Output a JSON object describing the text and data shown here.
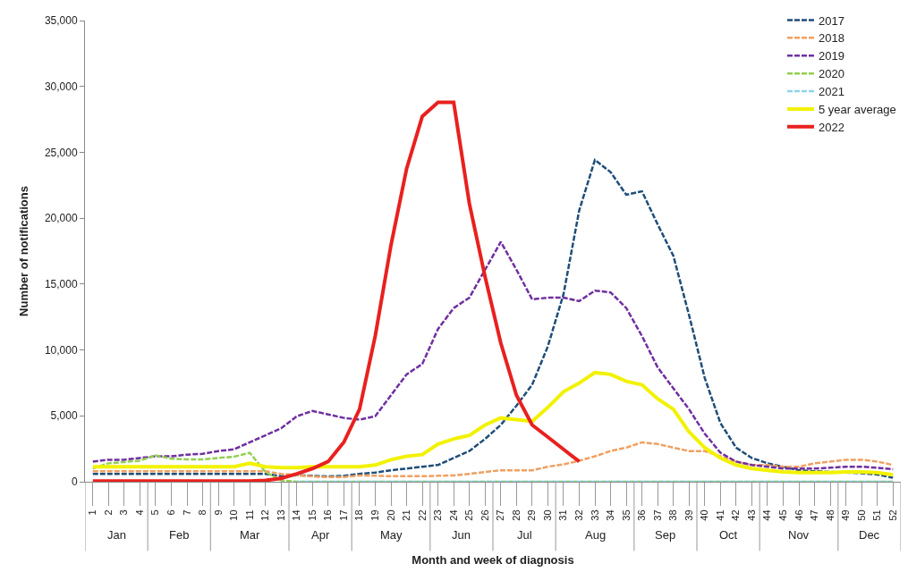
{
  "chart_data": {
    "type": "line",
    "xlabel": "Month and week of diagnosis",
    "ylabel": "Number of notifications",
    "categories": [
      "1",
      "2",
      "3",
      "4",
      "5",
      "6",
      "7",
      "8",
      "9",
      "10",
      "11",
      "12",
      "13",
      "14",
      "15",
      "16",
      "17",
      "18",
      "19",
      "20",
      "21",
      "22",
      "23",
      "24",
      "25",
      "26",
      "27",
      "28",
      "29",
      "30",
      "31",
      "32",
      "33",
      "34",
      "35",
      "36",
      "37",
      "38",
      "39",
      "40",
      "41",
      "42",
      "43",
      "44",
      "45",
      "46",
      "47",
      "48",
      "49",
      "50",
      "51",
      "52"
    ],
    "ylim": [
      0,
      35000
    ],
    "yticks": [
      {
        "value": 0,
        "label": "0"
      },
      {
        "value": 5000,
        "label": "5,000"
      },
      {
        "value": 10000,
        "label": "10,000"
      },
      {
        "value": 15000,
        "label": "15,000"
      },
      {
        "value": 20000,
        "label": "20,000"
      },
      {
        "value": 25000,
        "label": "25,000"
      },
      {
        "value": 30000,
        "label": "30,000"
      },
      {
        "value": 35000,
        "label": "35,000"
      }
    ],
    "legend": "top right",
    "series": [
      {
        "name": "2017",
        "color": "#1f4e79",
        "line_style": "dashed",
        "values": [
          600,
          600,
          600,
          600,
          600,
          600,
          600,
          600,
          600,
          600,
          600,
          600,
          420,
          500,
          450,
          400,
          450,
          600,
          700,
          870,
          1000,
          1140,
          1270,
          1800,
          2330,
          3250,
          4310,
          5770,
          7360,
          10270,
          14230,
          20590,
          24420,
          23500,
          21780,
          22040,
          19530,
          17150,
          12650,
          7880,
          4450,
          2590,
          1800,
          1400,
          1140,
          870,
          800,
          750,
          700,
          650,
          550,
          300
        ]
      },
      {
        "name": "2018",
        "color": "#f0a060",
        "line_style": "dashed",
        "values": [
          800,
          800,
          800,
          800,
          800,
          800,
          800,
          800,
          800,
          800,
          800,
          800,
          600,
          500,
          400,
          350,
          350,
          480,
          450,
          420,
          420,
          420,
          450,
          480,
          600,
          740,
          870,
          870,
          870,
          1140,
          1320,
          1590,
          1930,
          2330,
          2590,
          2990,
          2860,
          2590,
          2330,
          2330,
          1930,
          1530,
          1270,
          1270,
          1140,
          1140,
          1400,
          1530,
          1670,
          1670,
          1530,
          1270
        ]
      },
      {
        "name": "2019",
        "color": "#7030a0",
        "line_style": "dashed",
        "values": [
          1530,
          1670,
          1670,
          1800,
          1930,
          1930,
          2060,
          2120,
          2330,
          2460,
          2990,
          3520,
          4050,
          4970,
          5370,
          5110,
          4840,
          4710,
          4970,
          6560,
          8150,
          8940,
          11590,
          13180,
          13970,
          16090,
          18200,
          16090,
          13840,
          13970,
          13970,
          13710,
          14500,
          14370,
          13180,
          11060,
          8680,
          7090,
          5500,
          3650,
          2200,
          1530,
          1270,
          1140,
          1000,
          1000,
          1000,
          1060,
          1140,
          1140,
          1060,
          950
        ]
      },
      {
        "name": "2020",
        "color": "#92d050",
        "line_style": "dashed",
        "values": [
          1000,
          1400,
          1500,
          1600,
          2000,
          1750,
          1700,
          1700,
          1800,
          1900,
          2200,
          740,
          100,
          0,
          0,
          0,
          0,
          0,
          0,
          0,
          0,
          0,
          0,
          0,
          0,
          0,
          0,
          0,
          0,
          0,
          0,
          0,
          0,
          0,
          0,
          0,
          0,
          0,
          0,
          0,
          0,
          0,
          0,
          0,
          0,
          0,
          0,
          0,
          0,
          0,
          0,
          0
        ]
      },
      {
        "name": "2021",
        "color": "#8fd3e8",
        "line_style": "dashed",
        "values": [
          null,
          null,
          null,
          null,
          null,
          null,
          null,
          null,
          null,
          null,
          null,
          null,
          null,
          0,
          0,
          0,
          0,
          0,
          0,
          0,
          0,
          0,
          0,
          0,
          0,
          0,
          0,
          0,
          0,
          0,
          0,
          0,
          0,
          0,
          0,
          0,
          0,
          0,
          0,
          0,
          0,
          0,
          0,
          0,
          0,
          0,
          0,
          0,
          0,
          0,
          0,
          0
        ]
      },
      {
        "name": "5 year average",
        "color": "#f2f200",
        "line_style": "solid",
        "values": [
          1140,
          1140,
          1140,
          1140,
          1140,
          1140,
          1140,
          1140,
          1140,
          1140,
          1400,
          1140,
          1060,
          1060,
          1140,
          1140,
          1140,
          1140,
          1270,
          1670,
          1930,
          2060,
          2860,
          3250,
          3520,
          4310,
          4840,
          4710,
          4580,
          5640,
          6830,
          7490,
          8280,
          8150,
          7620,
          7360,
          6300,
          5500,
          3780,
          2590,
          1800,
          1270,
          1000,
          870,
          740,
          690,
          690,
          690,
          740,
          740,
          690,
          530
        ]
      },
      {
        "name": "2022",
        "color": "#e8211f",
        "line_style": "solid",
        "values": [
          50,
          50,
          50,
          50,
          50,
          50,
          50,
          50,
          50,
          50,
          50,
          100,
          260,
          600,
          1000,
          1530,
          3000,
          5500,
          11060,
          17940,
          23760,
          27730,
          28790,
          28790,
          21100,
          15560,
          10530,
          6560,
          4310,
          3390,
          2460,
          1530,
          null,
          null,
          null,
          null,
          null,
          null,
          null,
          null,
          null,
          null,
          null,
          null,
          null,
          null,
          null,
          null,
          null,
          null,
          null,
          null
        ]
      }
    ],
    "annotations": [
      "Jan",
      "Feb",
      "Mar",
      "Apr",
      "May",
      "Jun",
      "Jul",
      "Aug",
      "Sep",
      "Oct",
      "Nov",
      "Dec"
    ]
  }
}
